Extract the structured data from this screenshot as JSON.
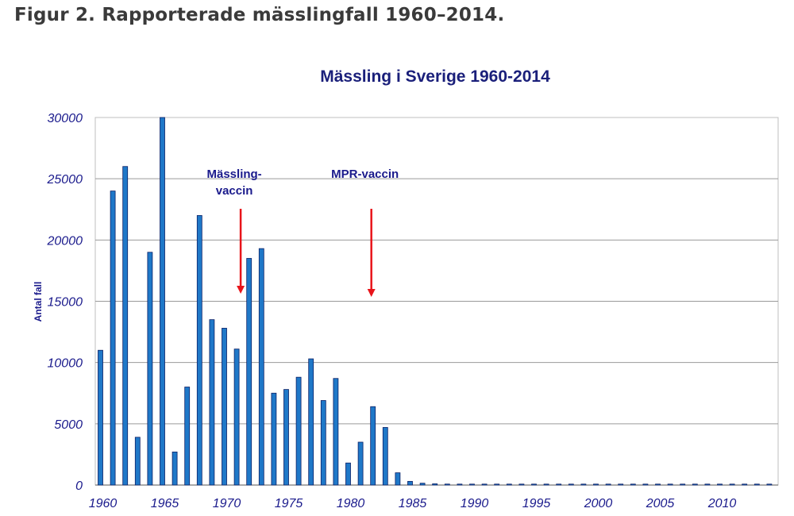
{
  "figure_caption": "Figur 2. Rapporterade mässlingfall 1960–2014.",
  "chart_data": {
    "type": "bar",
    "title": "Mässling i Sverige 1960-2014",
    "xlabel": "",
    "ylabel": "Antal fall",
    "ylim": [
      0,
      30000
    ],
    "yticks": [
      0,
      5000,
      10000,
      15000,
      20000,
      25000,
      30000
    ],
    "xticks": [
      1960,
      1965,
      1970,
      1975,
      1980,
      1985,
      1990,
      1995,
      2000,
      2005,
      2010
    ],
    "xlim": [
      1960,
      2014
    ],
    "grid": true,
    "categories": [
      1960,
      1961,
      1962,
      1963,
      1964,
      1965,
      1966,
      1967,
      1968,
      1969,
      1970,
      1971,
      1972,
      1973,
      1974,
      1975,
      1976,
      1977,
      1978,
      1979,
      1980,
      1981,
      1982,
      1983,
      1984,
      1985,
      1986,
      1987,
      1988,
      1989,
      1990,
      1991,
      1992,
      1993,
      1994,
      1995,
      1996,
      1997,
      1998,
      1999,
      2000,
      2001,
      2002,
      2003,
      2004,
      2005,
      2006,
      2007,
      2008,
      2009,
      2010,
      2011,
      2012,
      2013,
      2014
    ],
    "values": [
      11000,
      24000,
      26000,
      3900,
      19000,
      30000,
      2700,
      8000,
      22000,
      13500,
      12800,
      11100,
      18500,
      19300,
      7500,
      7800,
      8800,
      10300,
      6900,
      8700,
      1800,
      3500,
      6400,
      4700,
      1000,
      300,
      150,
      100,
      80,
      60,
      50,
      40,
      30,
      30,
      20,
      20,
      20,
      20,
      20,
      20,
      20,
      20,
      20,
      20,
      20,
      20,
      20,
      20,
      20,
      20,
      20,
      20,
      20,
      20,
      20
    ],
    "annotations": [
      {
        "text": "Mässling-\nvaccin",
        "line1": "Mässling-",
        "line2": "vaccin",
        "year": 1971
      },
      {
        "text": "MPR-vaccin",
        "line1": "MPR-vaccin",
        "year": 1982
      }
    ]
  },
  "colors": {
    "bar": "#1f78c8",
    "bar_edge": "#0a1f66",
    "text_dark_blue": "#1a1a8c",
    "title_blue": "#1a1f7a",
    "arrow_red": "#e8141a",
    "grid": "#9a9a9a",
    "plot_border": "#bfbfbf"
  }
}
